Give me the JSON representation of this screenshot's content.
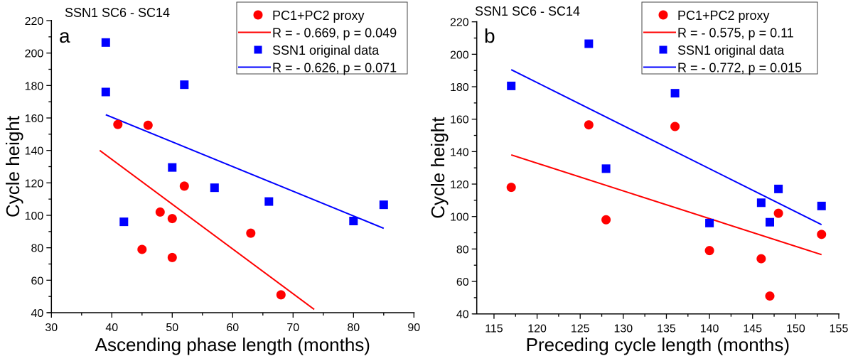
{
  "chart_data": [
    {
      "type": "scatter",
      "panel_label": "a",
      "title": "SSN1 SC6 - SC14",
      "xlabel": "Ascending phase length (months)",
      "ylabel": "Cycle height",
      "xlim": [
        30,
        90
      ],
      "ylim": [
        40,
        220
      ],
      "xticks": [
        30,
        40,
        50,
        60,
        70,
        80,
        90
      ],
      "yticks": [
        40,
        60,
        80,
        100,
        120,
        140,
        160,
        180,
        200,
        220
      ],
      "grid": false,
      "legend_position": "top-right",
      "series": [
        {
          "name": "PC1+PC2 proxy",
          "marker": "circle",
          "color": "#ff0000",
          "points": [
            [
              41,
              156
            ],
            [
              46,
              155.5
            ],
            [
              52,
              118
            ],
            [
              48,
              102
            ],
            [
              50,
              98
            ],
            [
              45,
              79
            ],
            [
              50,
              74
            ],
            [
              63,
              89
            ],
            [
              68,
              51
            ]
          ],
          "fit": {
            "label": "R = - 0.669, p = 0.049",
            "from": [
              38,
              140
            ],
            "to": [
              73.5,
              42
            ]
          }
        },
        {
          "name": "SSN1 original data",
          "marker": "square",
          "color": "#0000ff",
          "points": [
            [
              39,
              206.5
            ],
            [
              39,
              176
            ],
            [
              52,
              180.5
            ],
            [
              50,
              129.5
            ],
            [
              57,
              117
            ],
            [
              42,
              96
            ],
            [
              66,
              108.5
            ],
            [
              80,
              96.5
            ],
            [
              85,
              106.5
            ]
          ],
          "fit": {
            "label": "R = - 0.626, p = 0.071",
            "from": [
              39,
              162
            ],
            "to": [
              85,
              92
            ]
          }
        }
      ]
    },
    {
      "type": "scatter",
      "panel_label": "b",
      "title": "SSN1 SC6 - SC14",
      "xlabel": "Preceding cycle length (months)",
      "ylabel": "Cycle height",
      "xlim": [
        113,
        155
      ],
      "ylim": [
        40,
        220
      ],
      "xticks": [
        115,
        120,
        125,
        130,
        135,
        140,
        145,
        150,
        155
      ],
      "yticks": [
        40,
        60,
        80,
        100,
        120,
        140,
        160,
        180,
        200,
        220
      ],
      "grid": false,
      "legend_position": "top-right",
      "series": [
        {
          "name": "PC1+PC2 proxy",
          "marker": "circle",
          "color": "#ff0000",
          "points": [
            [
              117,
              118
            ],
            [
              126,
              156.5
            ],
            [
              128,
              98
            ],
            [
              136,
              155.5
            ],
            [
              140,
              79
            ],
            [
              146,
              74
            ],
            [
              147,
              51
            ],
            [
              148,
              102
            ],
            [
              153,
              89
            ]
          ],
          "fit": {
            "label": "R = - 0.575, p = 0.11",
            "from": [
              117,
              138
            ],
            "to": [
              153,
              76.5
            ]
          }
        },
        {
          "name": "SSN1 original data",
          "marker": "square",
          "color": "#0000ff",
          "points": [
            [
              117,
              180.5
            ],
            [
              126,
              206.5
            ],
            [
              128,
              129.5
            ],
            [
              136,
              176
            ],
            [
              140,
              96
            ],
            [
              146,
              108.5
            ],
            [
              147,
              96.5
            ],
            [
              148,
              117
            ],
            [
              153,
              106.5
            ]
          ],
          "fit": {
            "label": "R = - 0.772, p = 0.015",
            "from": [
              117,
              190.5
            ],
            "to": [
              153,
              95
            ]
          }
        }
      ]
    }
  ]
}
